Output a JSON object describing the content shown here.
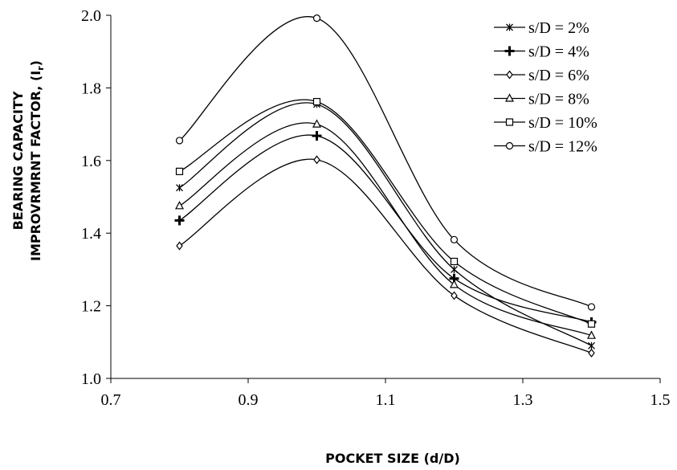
{
  "chart_data": {
    "type": "line",
    "title": "",
    "xlabel": "POCKET SIZE (d/D)",
    "ylabel_line1": "BEARING CAPACITY",
    "ylabel_line2": "IMPROVRMRNT  FACTOR,  (I",
    "ylabel_sub": "r",
    "ylabel_end": ")",
    "xlim": [
      0.7,
      1.5
    ],
    "ylim": [
      1.0,
      2.0
    ],
    "xticks": [
      "0.7",
      "0.9",
      "1.1",
      "1.3",
      "1.5"
    ],
    "yticks": [
      "1.0",
      "1.2",
      "1.4",
      "1.6",
      "1.8",
      "2.0"
    ],
    "grid": false,
    "legend_position": "top-right",
    "smooth": true,
    "x": [
      0.8,
      1.0,
      1.2,
      1.4
    ],
    "series": [
      {
        "name": "s/D = 2%",
        "marker": "asterisk",
        "values": [
          1.525,
          1.755,
          1.3,
          1.09
        ]
      },
      {
        "name": "s/D = 4%",
        "marker": "plus",
        "values": [
          1.435,
          1.668,
          1.275,
          1.155
        ]
      },
      {
        "name": "s/D = 6%",
        "marker": "diamond",
        "values": [
          1.365,
          1.602,
          1.228,
          1.07
        ]
      },
      {
        "name": "s/D = 8%",
        "marker": "triangle",
        "values": [
          1.475,
          1.7,
          1.258,
          1.118
        ]
      },
      {
        "name": "s/D = 10%",
        "marker": "square",
        "values": [
          1.57,
          1.762,
          1.322,
          1.15
        ]
      },
      {
        "name": "s/D = 12%",
        "marker": "circle",
        "values": [
          1.655,
          1.992,
          1.382,
          1.197
        ]
      }
    ]
  }
}
